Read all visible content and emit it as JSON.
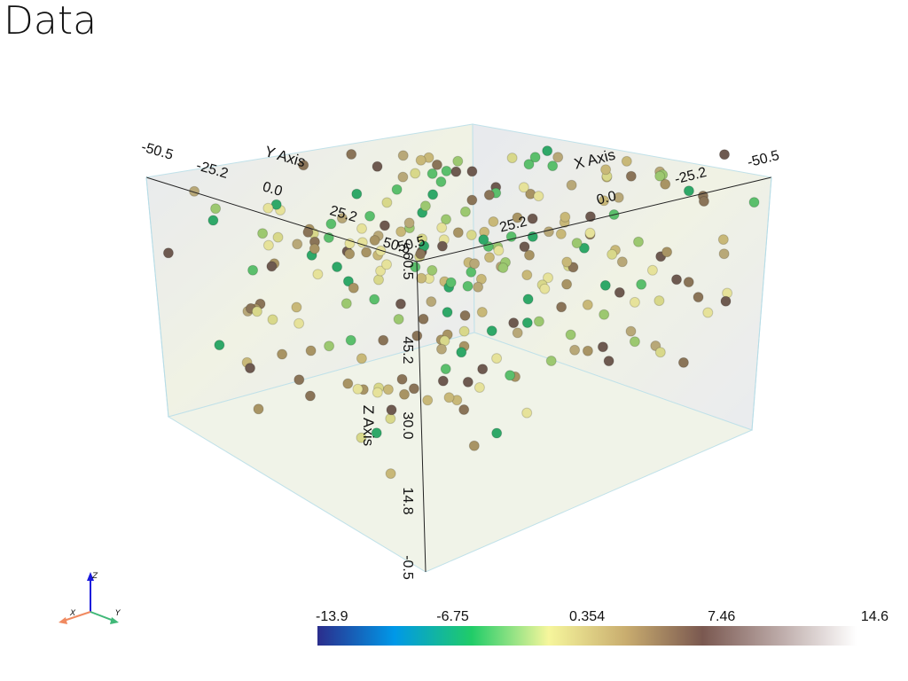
{
  "title": "Data",
  "axes": {
    "x": {
      "label": "X Axis",
      "ticks": [
        "50.5",
        "25.2",
        "0.0",
        "-25.2",
        "-50.5"
      ]
    },
    "y": {
      "label": "Y Axis",
      "ticks": [
        "-50.5",
        "-25.2",
        "0.0",
        "25.2",
        "50.5"
      ]
    },
    "z": {
      "label": "Z Axis",
      "ticks": [
        "60.5",
        "45.2",
        "30.0",
        "14.8",
        "-0.5"
      ]
    }
  },
  "colorbar": {
    "ticks": [
      -13.9,
      -6.75,
      0.354,
      7.46,
      14.6
    ],
    "colors": [
      "#2b2d8c",
      "#0098e8",
      "#20cc68",
      "#f6f69c",
      "#c9ad6f",
      "#7a5850",
      "#bcaaa8",
      "#ffffff"
    ]
  },
  "orientation": {
    "labels": [
      "X",
      "Y",
      "Z"
    ]
  }
}
